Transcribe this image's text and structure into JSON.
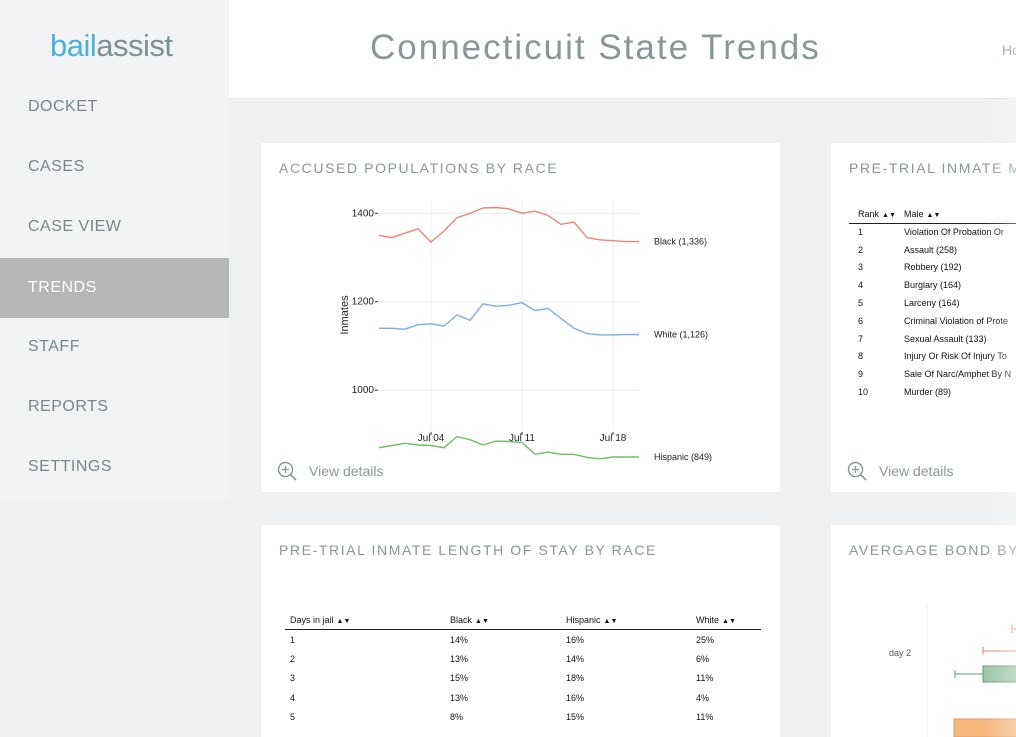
{
  "sidebar": {
    "logo_bail": "bail",
    "logo_assist": "assist",
    "items": [
      {
        "label": "DOCKET"
      },
      {
        "label": "CASES"
      },
      {
        "label": "CASE VIEW"
      },
      {
        "label": "TRENDS"
      },
      {
        "label": "STAFF"
      },
      {
        "label": "REPORTS"
      },
      {
        "label": "SETTINGS"
      }
    ],
    "active_index": 3
  },
  "header": {
    "title": "Connecticuit State Trends",
    "home_link": "Ho"
  },
  "cards": {
    "race_trend": {
      "title": "ACCUSED POPULATIONS BY RACE",
      "view_details": "View details"
    },
    "top_charges": {
      "title": "PRE-TRIAL INMATE MO",
      "view_details": "View details",
      "columns": [
        "Rank",
        "Male"
      ],
      "rows": [
        [
          "1",
          "Violation Of Probation Or"
        ],
        [
          "2",
          "Assault (258)"
        ],
        [
          "3",
          "Robbery (192)"
        ],
        [
          "4",
          "Burglary (164)"
        ],
        [
          "5",
          "Larceny (164)"
        ],
        [
          "6",
          "Criminal Violation of Prote"
        ],
        [
          "7",
          "Sexual Assault (133)"
        ],
        [
          "8",
          "Injury Or Risk Of Injury To"
        ],
        [
          "9",
          "Sale Of Narc/Amphet By N"
        ],
        [
          "10",
          "Murder (89)"
        ]
      ]
    },
    "length_of_stay": {
      "title": "PRE-TRIAL INMATE LENGTH OF STAY BY RACE",
      "columns": [
        "Days in jail",
        "Black",
        "Hispanic",
        "White"
      ],
      "rows": [
        [
          "1",
          "14%",
          "16%",
          "25%"
        ],
        [
          "2",
          "13%",
          "14%",
          "6%"
        ],
        [
          "3",
          "15%",
          "18%",
          "11%"
        ],
        [
          "4",
          "13%",
          "16%",
          "4%"
        ],
        [
          "5",
          "8%",
          "15%",
          "11%"
        ]
      ]
    },
    "average_bond": {
      "title": "AVERGAGE BOND BY R",
      "row_label": "day 2",
      "colors": {
        "red": "#e8826f",
        "green": "#5f9d7a",
        "orange": "#f5b77e"
      }
    }
  },
  "chart_data": {
    "type": "line",
    "title": "",
    "xlabel": "",
    "ylabel": "Inmates",
    "x_tick_labels": [
      "Jul 04",
      "Jul 11",
      "Jul 18"
    ],
    "y_ticks": [
      1000,
      1200,
      1400
    ],
    "ylim": [
      910,
      1430
    ],
    "x": [
      0,
      1,
      2,
      3,
      4,
      5,
      6,
      7,
      8,
      9,
      10,
      11,
      12,
      13,
      14,
      15,
      16,
      17,
      18,
      19,
      20
    ],
    "x_tick_positions": [
      4,
      11,
      18
    ],
    "grid": true,
    "series": [
      {
        "name": "Black (1,336)",
        "color": "#e8857d",
        "values": [
          1350,
          1345,
          1355,
          1365,
          1335,
          1360,
          1390,
          1400,
          1412,
          1413,
          1410,
          1400,
          1405,
          1395,
          1375,
          1380,
          1345,
          1340,
          1338,
          1336,
          1336
        ]
      },
      {
        "name": "White (1,126)",
        "color": "#7eaedf",
        "values": [
          1140,
          1140,
          1138,
          1148,
          1150,
          1145,
          1170,
          1158,
          1195,
          1190,
          1192,
          1198,
          1180,
          1185,
          1162,
          1140,
          1128,
          1125,
          1125,
          1126,
          1126
        ]
      },
      {
        "name": "Hispanic (849)",
        "color": "#6dbe6a",
        "values": [
          870,
          875,
          880,
          876,
          875,
          870,
          895,
          888,
          876,
          885,
          884,
          882,
          855,
          860,
          855,
          855,
          848,
          845,
          849,
          849,
          849
        ]
      }
    ]
  }
}
